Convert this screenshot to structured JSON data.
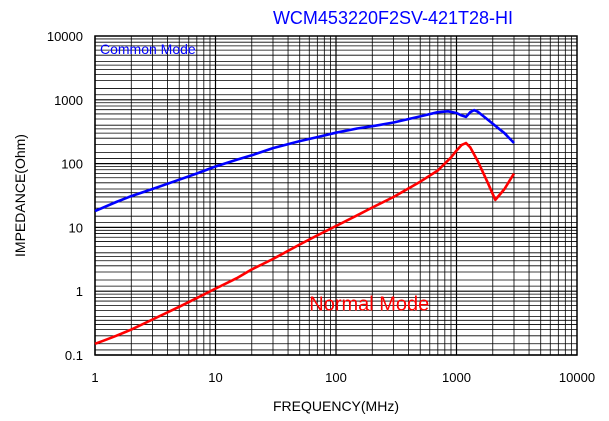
{
  "chart_data": {
    "type": "line",
    "title": "WCM453220F2SV-421T28-HI",
    "xlabel": "FREQUENCY(MHz)",
    "ylabel": "IMPEDANCE(Ohm)",
    "x_scale": "log",
    "y_scale": "log",
    "xlim": [
      1,
      10000
    ],
    "ylim": [
      0.1,
      10000
    ],
    "x_tick_labels": [
      "1",
      "10",
      "100",
      "1000",
      "10000"
    ],
    "y_tick_labels": [
      "10000",
      "1000",
      "100",
      "10",
      "1",
      "0.1"
    ],
    "grid": true,
    "annotations": [
      {
        "text": "Common Mode",
        "color": "#0000ff",
        "x": 1.1,
        "y": 5200
      },
      {
        "text": "Normal Mode",
        "color": "#ff0000",
        "x": 60,
        "y": 0.5
      }
    ],
    "series": [
      {
        "name": "Common Mode",
        "color": "#0000ff",
        "x": [
          1,
          1.5,
          2,
          3,
          5,
          7,
          10,
          15,
          20,
          30,
          50,
          70,
          100,
          150,
          200,
          300,
          500,
          700,
          850,
          1000,
          1100,
          1200,
          1300,
          1400,
          1500,
          1700,
          2000,
          2500,
          3000
        ],
        "y": [
          18,
          25,
          31,
          40,
          56,
          70,
          90,
          115,
          135,
          175,
          225,
          260,
          305,
          355,
          385,
          440,
          550,
          640,
          660,
          620,
          570,
          540,
          640,
          690,
          650,
          540,
          420,
          300,
          210
        ]
      },
      {
        "name": "Normal Mode",
        "color": "#ff0000",
        "x": [
          1,
          1.2,
          1.5,
          2,
          3,
          5,
          7,
          10,
          15,
          20,
          30,
          50,
          70,
          100,
          150,
          200,
          300,
          500,
          700,
          900,
          1000,
          1100,
          1200,
          1300,
          1500,
          1800,
          2100,
          2500,
          3000
        ],
        "y": [
          0.15,
          0.17,
          0.2,
          0.25,
          0.36,
          0.57,
          0.78,
          1.1,
          1.6,
          2.2,
          3.2,
          5.4,
          7.5,
          10.5,
          15.5,
          20.5,
          30,
          52,
          78,
          125,
          160,
          195,
          210,
          180,
          110,
          52,
          27,
          40,
          70
        ]
      }
    ]
  }
}
